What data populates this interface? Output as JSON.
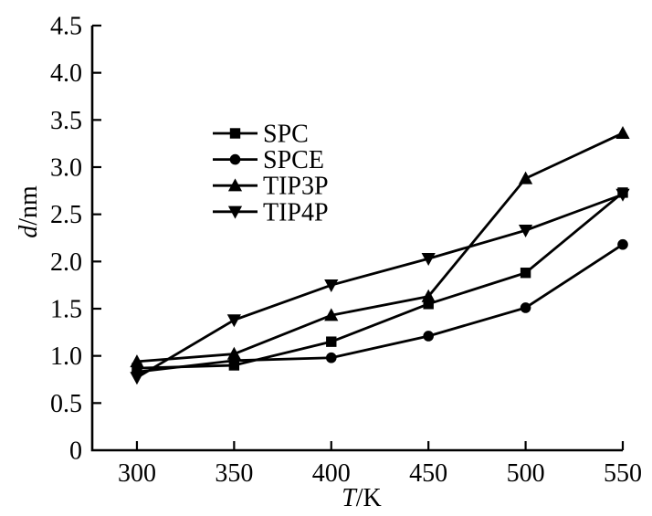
{
  "figure": {
    "background_color": "#ffffff",
    "ink_color": "#000000"
  },
  "chart_data": {
    "type": "line",
    "title": "",
    "x": [
      300,
      350,
      400,
      450,
      500,
      550
    ],
    "series": [
      {
        "name": "SPC",
        "marker": "square",
        "values": [
          0.87,
          0.9,
          1.15,
          1.55,
          1.88,
          2.73
        ]
      },
      {
        "name": "SPCE",
        "marker": "circle",
        "values": [
          0.83,
          0.95,
          0.98,
          1.21,
          1.51,
          2.18
        ]
      },
      {
        "name": "TIP3P",
        "marker": "triangle-up",
        "values": [
          0.94,
          1.02,
          1.43,
          1.63,
          2.88,
          3.36
        ]
      },
      {
        "name": "TIP4P",
        "marker": "triangle-down",
        "values": [
          0.77,
          1.38,
          1.75,
          2.03,
          2.33,
          2.71
        ]
      }
    ],
    "xlabel_italic": "T",
    "xlabel_rest": "/K",
    "ylabel_italic": "d",
    "ylabel_rest": "/nm",
    "xlim": [
      277,
      550
    ],
    "ylim": [
      0,
      4.5
    ],
    "xticks": [
      300,
      350,
      400,
      450,
      500,
      550
    ],
    "ytick_labels": [
      "0",
      "0.5",
      "1.0",
      "1.5",
      "2.0",
      "2.5",
      "3.0",
      "3.5",
      "4.0",
      "4.5"
    ],
    "grid": false,
    "legend": {
      "position": "inside-upper-left",
      "entries": [
        "SPC",
        "SPCE",
        "TIP3P",
        "TIP4P"
      ]
    },
    "line_color": "#000000",
    "marker_color": "#000000"
  }
}
